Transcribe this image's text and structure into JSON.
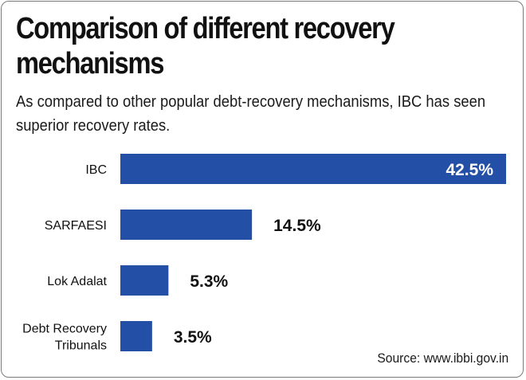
{
  "header": {
    "title": "Comparison of different recovery mechanisms",
    "subtitle": "As compared to other popular debt-recovery mechanisms, IBC has seen superior recovery rates."
  },
  "footer": {
    "source": "Source: www.ibbi.gov.in"
  },
  "colors": {
    "bar": "#2350a6",
    "label_inside": "#ffffff",
    "label_outside": "#111111",
    "text": "#111111"
  },
  "chart_data": {
    "type": "bar",
    "orientation": "horizontal",
    "categories": [
      "IBC",
      "SARFAESI",
      "Lok Adalat",
      "Debt Recovery Tribunals"
    ],
    "category_lines": [
      [
        "IBC"
      ],
      [
        "SARFAESI"
      ],
      [
        "Lok Adalat"
      ],
      [
        "Debt Recovery",
        "Tribunals"
      ]
    ],
    "values": [
      42.5,
      14.5,
      5.3,
      3.5
    ],
    "value_labels": [
      "42.5%",
      "14.5%",
      "5.3%",
      "3.5%"
    ],
    "unit": "%",
    "xlim": [
      0,
      42.5
    ],
    "title": "Comparison of different recovery mechanisms",
    "xlabel": "",
    "ylabel": "",
    "grid": false,
    "legend": "none"
  }
}
